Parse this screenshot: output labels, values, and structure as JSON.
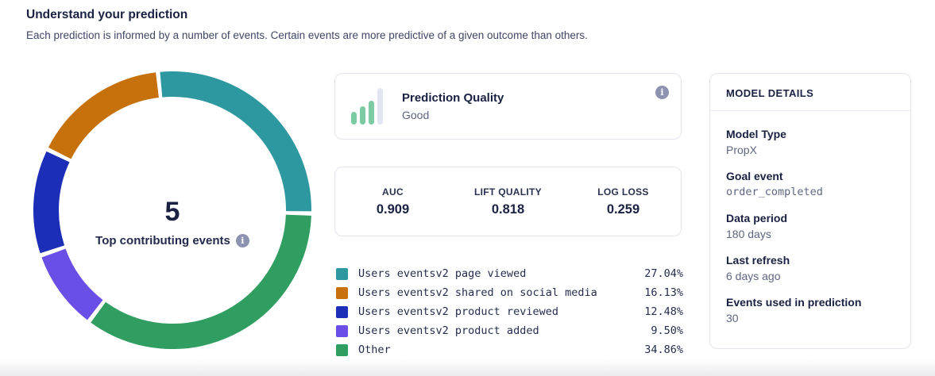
{
  "header": {
    "title": "Understand your prediction",
    "subtitle": "Each prediction is informed by a number of events. Certain events are more predictive of a given outcome than others."
  },
  "donut_center": {
    "value": "5",
    "label": "Top contributing events"
  },
  "prediction_quality": {
    "title": "Prediction Quality",
    "value": "Good"
  },
  "metrics": {
    "items": [
      {
        "label": "AUC",
        "value": "0.909"
      },
      {
        "label": "LIFT QUALITY",
        "value": "0.818"
      },
      {
        "label": "LOG LOSS",
        "value": "0.259"
      }
    ]
  },
  "chart_data": {
    "type": "pie",
    "title": "Top contributing events",
    "center_value": 5,
    "segments": [
      {
        "label": "Users eventsv2 page viewed",
        "value": 27.04,
        "pct": "27.04%",
        "color": "#2d98a0"
      },
      {
        "label": "Users eventsv2 shared on social media",
        "value": 16.13,
        "pct": "16.13%",
        "color": "#c7710c"
      },
      {
        "label": "Users eventsv2 product reviewed",
        "value": 12.48,
        "pct": "12.48%",
        "color": "#1c2eb8"
      },
      {
        "label": "Users eventsv2 product added",
        "value": 9.5,
        "pct": "9.50%",
        "color": "#6b4ee6"
      },
      {
        "label": "Other",
        "value": 34.86,
        "pct": "34.86%",
        "color": "#2f9e60"
      }
    ],
    "donut": {
      "start_deg": -96,
      "order": [
        0,
        4,
        3,
        2,
        1
      ],
      "pad_deg": 1.8,
      "thickness": 32,
      "radius": 159
    }
  },
  "model_details": {
    "title": "MODEL DETAILS",
    "rows": [
      {
        "label": "Model Type",
        "value": "PropX"
      },
      {
        "label": "Goal event",
        "value": "order_completed"
      },
      {
        "label": "Data period",
        "value": "180 days"
      },
      {
        "label": "Last refresh",
        "value": "6 days ago"
      },
      {
        "label": "Events used in prediction",
        "value": "30"
      }
    ]
  },
  "icons": {
    "info": "i"
  }
}
